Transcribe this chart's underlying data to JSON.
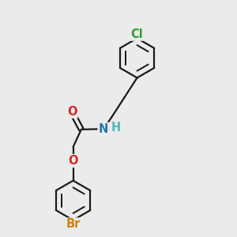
{
  "bg_color": "#ebebeb",
  "bond_color": "#1a1a1a",
  "bond_width": 1.6,
  "atom_colors": {
    "Cl": "#2ca02c",
    "Br": "#d4820a",
    "O": "#d62728",
    "N": "#1f77b4",
    "H": "#4dbbbb",
    "C": "#1a1a1a"
  },
  "font_size": 10.5,
  "fig_bg": "#ebebeb",
  "xlim": [
    0,
    10
  ],
  "ylim": [
    0,
    10
  ]
}
